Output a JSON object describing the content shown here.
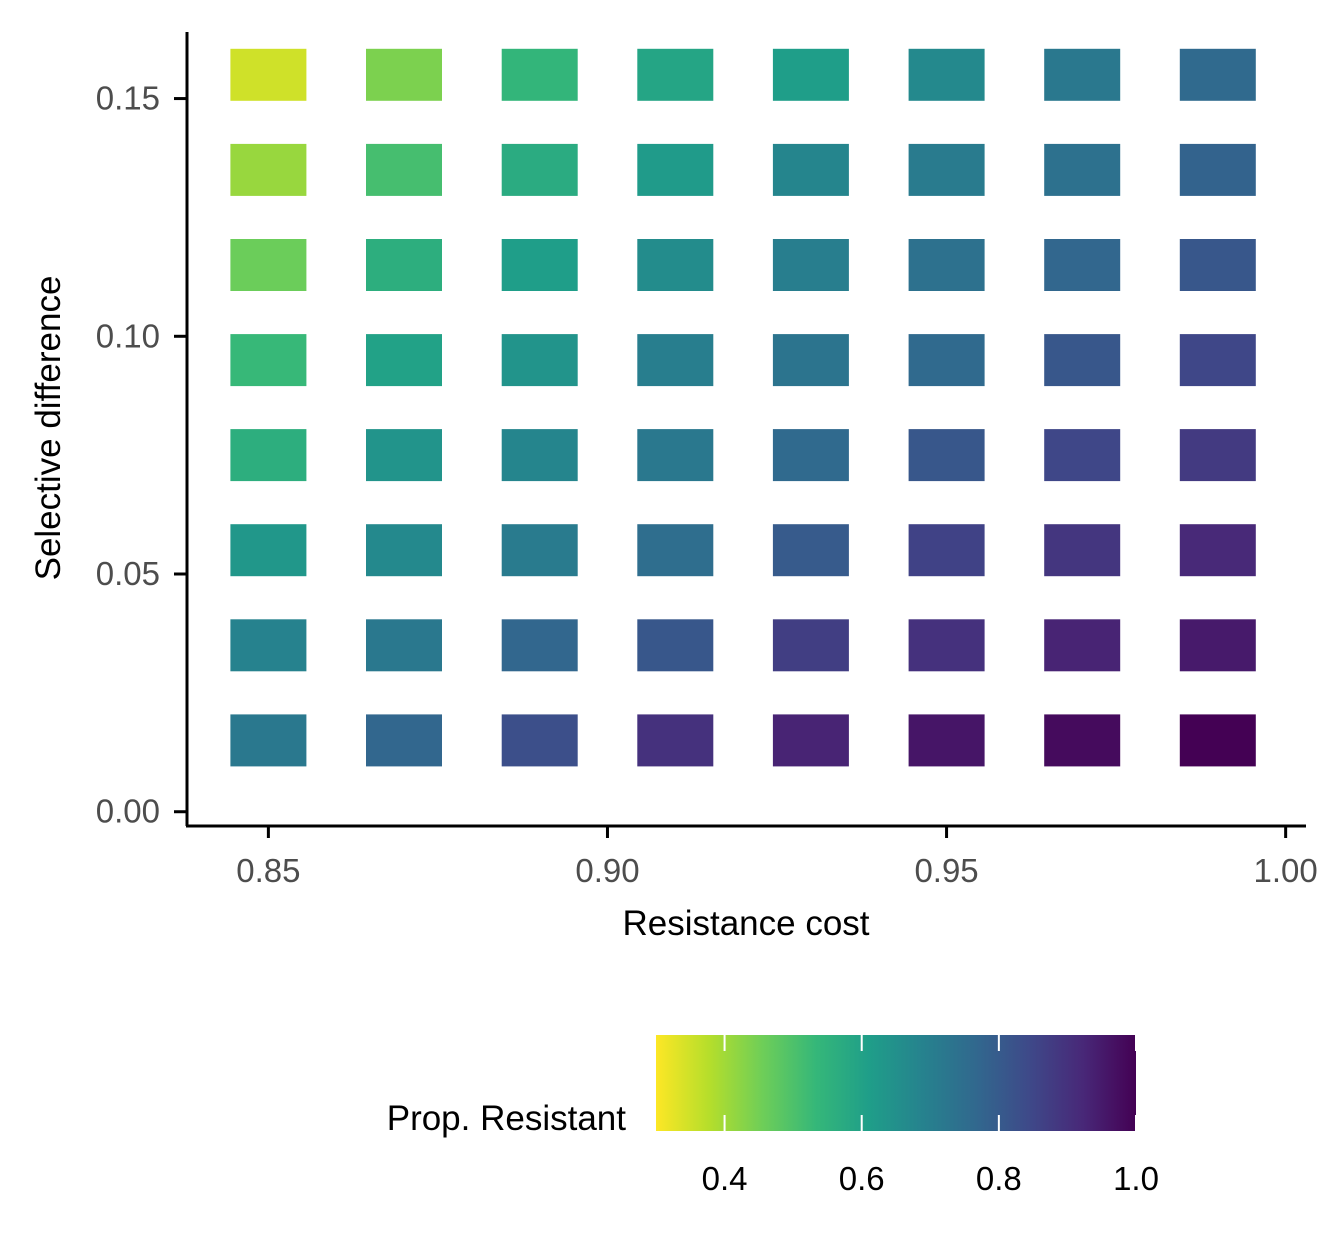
{
  "chart_data": {
    "type": "heatmap",
    "title": "",
    "xlabel": "Resistance cost",
    "ylabel": "Selective difference",
    "x": [
      0.85,
      0.87,
      0.89,
      0.91,
      0.93,
      0.95,
      0.97,
      0.99
    ],
    "y": [
      0.015,
      0.035,
      0.055,
      0.075,
      0.095,
      0.115,
      0.135,
      0.155
    ],
    "xlim": [
      0.838,
      1.003
    ],
    "ylim": [
      -0.003,
      0.164
    ],
    "x_ticks": [
      0.85,
      0.9,
      0.95,
      1.0
    ],
    "x_tick_labels": [
      "0.85",
      "0.90",
      "0.95",
      "1.00"
    ],
    "y_ticks": [
      0.0,
      0.05,
      0.1,
      0.15
    ],
    "y_tick_labels": [
      "0.00",
      "0.05",
      "0.10",
      "0.15"
    ],
    "values": [
      [
        0.72,
        0.77,
        0.83,
        0.9,
        0.93,
        0.96,
        0.98,
        1.0
      ],
      [
        0.69,
        0.72,
        0.77,
        0.81,
        0.87,
        0.9,
        0.93,
        0.95
      ],
      [
        0.63,
        0.67,
        0.71,
        0.75,
        0.8,
        0.86,
        0.89,
        0.92
      ],
      [
        0.56,
        0.64,
        0.68,
        0.72,
        0.76,
        0.81,
        0.85,
        0.88
      ],
      [
        0.53,
        0.6,
        0.64,
        0.7,
        0.73,
        0.76,
        0.81,
        0.85
      ],
      [
        0.46,
        0.56,
        0.61,
        0.66,
        0.7,
        0.74,
        0.77,
        0.81
      ],
      [
        0.41,
        0.51,
        0.57,
        0.62,
        0.68,
        0.71,
        0.74,
        0.78
      ],
      [
        0.35,
        0.44,
        0.54,
        0.59,
        0.61,
        0.67,
        0.72,
        0.76
      ]
    ],
    "legend": {
      "title": "Prop. Resistant",
      "position": "bottom",
      "min": 0.3,
      "max": 1.0,
      "ticks": [
        0.4,
        0.6,
        0.8,
        1.0
      ],
      "tick_labels": [
        "0.4",
        "0.6",
        "0.8",
        "1.0"
      ],
      "palette": "viridis (reversed)"
    },
    "grid": false
  },
  "colors": {
    "viridis_stops": [
      "#440154",
      "#482878",
      "#3e4989",
      "#31688e",
      "#26828e",
      "#1f9e89",
      "#35b779",
      "#6ece58",
      "#b5de2b",
      "#fde725"
    ]
  }
}
